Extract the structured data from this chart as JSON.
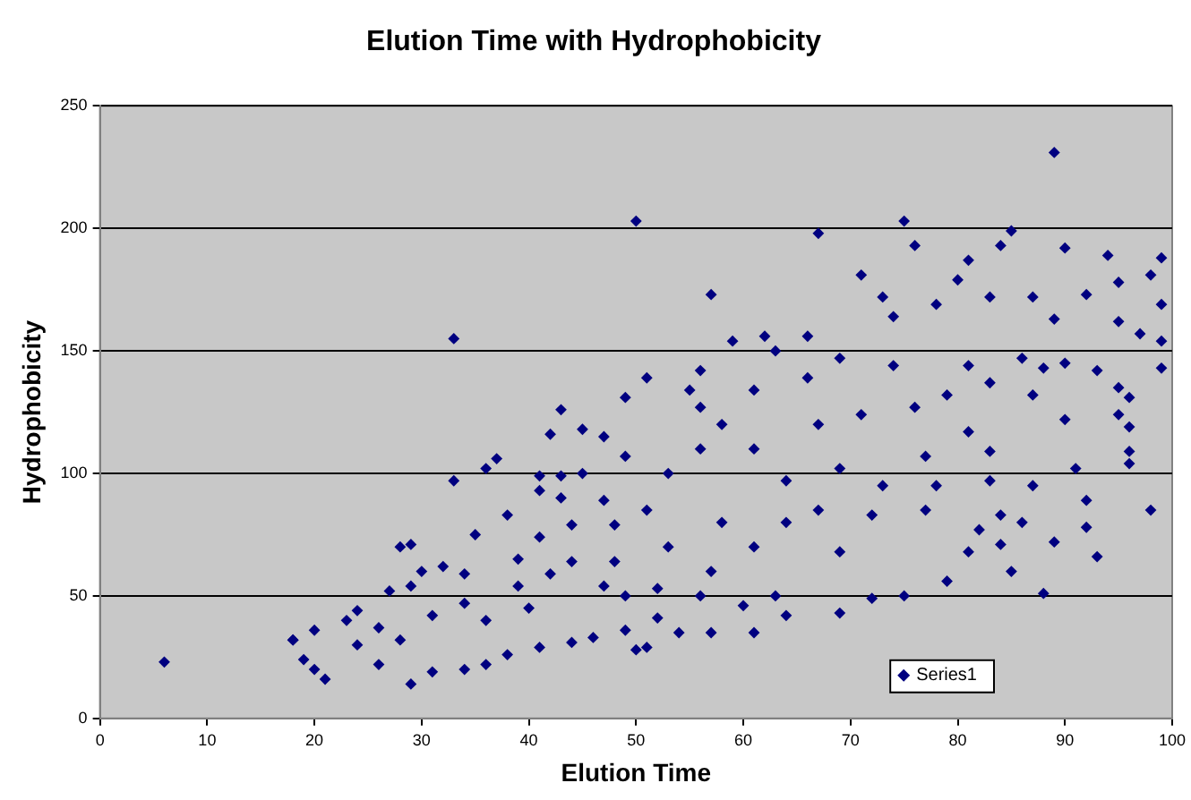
{
  "chart_data": {
    "type": "scatter",
    "title": "Elution Time with Hydrophobicity",
    "xlabel": "Elution Time",
    "ylabel": "Hydrophobicity",
    "xlim": [
      0,
      100
    ],
    "xticks": [
      0,
      10,
      20,
      30,
      40,
      50,
      60,
      70,
      80,
      90,
      100
    ],
    "ylim": [
      0,
      250
    ],
    "yticks": [
      0,
      50,
      100,
      150,
      200,
      250
    ],
    "grid": "y",
    "legend": "bottom right",
    "marker": "diamond",
    "series": [
      {
        "name": "Series1",
        "color": "#000080",
        "x": [
          6,
          33,
          33,
          18,
          18,
          19,
          20,
          21,
          20,
          23,
          24,
          27,
          28,
          29,
          29,
          29,
          31,
          30,
          32,
          34,
          36,
          37,
          35,
          42,
          43,
          45,
          47,
          49,
          49,
          45,
          43,
          41,
          41,
          43,
          38,
          39,
          41,
          38,
          36,
          44,
          46,
          49,
          50,
          24,
          26,
          26,
          28,
          31,
          34,
          36,
          39,
          40,
          42,
          44,
          47,
          48,
          48,
          49,
          34,
          41,
          44,
          47,
          50,
          89,
          67,
          75,
          76,
          85,
          90,
          84,
          81,
          94,
          99,
          98,
          95,
          99,
          92,
          87,
          80,
          71,
          57,
          73,
          83,
          89,
          95,
          97,
          99,
          99,
          90,
          88,
          93,
          95,
          96,
          95,
          96,
          96,
          96,
          98,
          93,
          92,
          92,
          91,
          90,
          89,
          88,
          85,
          86,
          87,
          83,
          82,
          81,
          79,
          75,
          72,
          69,
          64,
          61,
          57,
          54,
          51,
          59,
          62,
          66,
          51,
          56,
          55,
          56,
          63,
          69,
          74,
          78,
          74,
          81,
          86,
          76,
          79,
          83,
          87,
          81,
          77,
          73,
          77,
          78,
          83,
          84,
          84,
          72,
          69,
          67,
          64,
          61,
          58,
          56,
          53,
          51,
          53,
          57,
          61,
          64,
          67,
          71,
          66,
          61,
          69,
          63,
          60,
          56,
          52,
          52,
          58
        ],
        "values": [
          23,
          155,
          97,
          32,
          32,
          24,
          20,
          16,
          36,
          40,
          44,
          52,
          70,
          71,
          54,
          14,
          19,
          60,
          62,
          20,
          102,
          106,
          75,
          116,
          126,
          118,
          115,
          131,
          107,
          100,
          99,
          99,
          93,
          90,
          83,
          65,
          29,
          26,
          22,
          31,
          33,
          36,
          28,
          30,
          22,
          37,
          32,
          42,
          47,
          40,
          54,
          45,
          59,
          64,
          54,
          64,
          79,
          50,
          59,
          74,
          79,
          89,
          203,
          231,
          198,
          203,
          193,
          199,
          192,
          193,
          187,
          189,
          188,
          181,
          178,
          169,
          173,
          172,
          179,
          181,
          173,
          172,
          172,
          163,
          162,
          157,
          154,
          143,
          145,
          143,
          142,
          135,
          131,
          124,
          119,
          109,
          104,
          85,
          66,
          78,
          89,
          102,
          122,
          72,
          51,
          60,
          80,
          95,
          109,
          77,
          68,
          56,
          50,
          49,
          43,
          42,
          35,
          35,
          35,
          29,
          154,
          156,
          156,
          139,
          142,
          134,
          127,
          150,
          147,
          164,
          169,
          144,
          144,
          147,
          127,
          132,
          137,
          132,
          117,
          107,
          95,
          85,
          95,
          97,
          83,
          71,
          83,
          68,
          85,
          97,
          110,
          120,
          110,
          100,
          85,
          70,
          60,
          70,
          80,
          120,
          124,
          139,
          134,
          102,
          50,
          46,
          50,
          53,
          41,
          80
        ]
      }
    ]
  }
}
